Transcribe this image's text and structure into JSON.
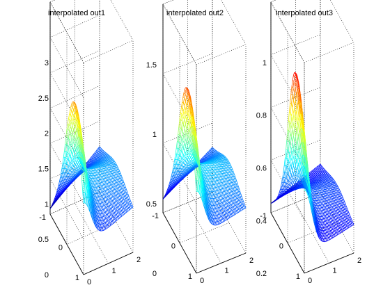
{
  "chart_data": [
    {
      "type": "surface",
      "title": "interpolated out1",
      "zticks": [
        0,
        0.5,
        1,
        1.5,
        2,
        2.5,
        3
      ],
      "zlim": [
        0,
        3
      ],
      "xticks": [
        0,
        1,
        2
      ],
      "yticks": [
        -1,
        0,
        1
      ],
      "xlim": [
        0,
        2
      ],
      "ylim": [
        -1,
        1
      ],
      "grid": true,
      "colormap": "jet",
      "peak": {
        "x": 0,
        "y": 0.5,
        "z": 2.45
      },
      "surface_points": [
        {
          "x": 0,
          "y": 1,
          "z": 0.7
        },
        {
          "x": 0,
          "y": -1,
          "z": 0.4
        },
        {
          "x": 1,
          "y": 0,
          "z": 1.0
        },
        {
          "x": 2,
          "y": 0,
          "z": 0.6
        }
      ]
    },
    {
      "type": "surface",
      "title": "interpolated out2",
      "zticks": [
        0,
        0.5,
        1,
        1.5
      ],
      "zlim": [
        0,
        1.5
      ],
      "xticks": [
        0,
        1,
        2
      ],
      "yticks": [
        -1,
        0,
        1
      ],
      "xlim": [
        0,
        2
      ],
      "ylim": [
        -1,
        1
      ],
      "grid": true,
      "colormap": "jet",
      "peak": {
        "x": 0,
        "y": 0.5,
        "z": 1.33
      },
      "surface_points": [
        {
          "x": 0,
          "y": 1,
          "z": 0.45
        },
        {
          "x": 0,
          "y": -1,
          "z": 0.3
        },
        {
          "x": 1,
          "y": 0,
          "z": 0.55
        },
        {
          "x": 2,
          "y": 0,
          "z": 0.3
        }
      ]
    },
    {
      "type": "surface",
      "title": "interpolated out3",
      "zticks": [
        0.2,
        0.4,
        0.6,
        0.8,
        1
      ],
      "zlim": [
        0.2,
        1
      ],
      "xticks": [
        0,
        1,
        2
      ],
      "yticks": [
        -1,
        0,
        1
      ],
      "xlim": [
        0,
        2
      ],
      "ylim": [
        -1,
        1
      ],
      "grid": true,
      "colormap": "jet",
      "peak": {
        "x": 0,
        "y": 0.5,
        "z": 0.95
      },
      "surface_points": [
        {
          "x": 0,
          "y": 1,
          "z": 0.33
        },
        {
          "x": 0,
          "y": -1,
          "z": 0.3
        },
        {
          "x": 1,
          "y": 0,
          "z": 0.38
        },
        {
          "x": 2,
          "y": 0,
          "z": 0.3
        }
      ]
    }
  ]
}
